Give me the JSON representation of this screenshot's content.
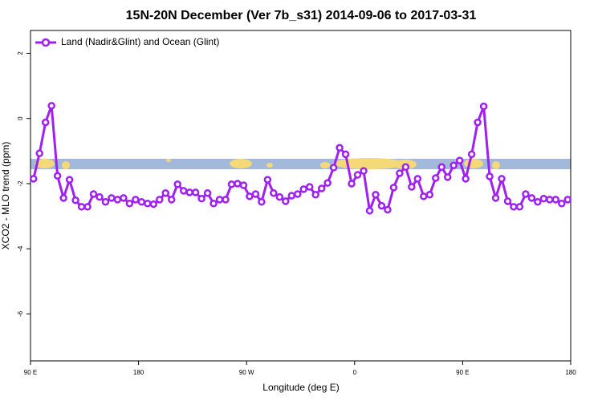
{
  "chart_data": {
    "type": "line",
    "title": "15N-20N December (Ver 7b_s31)   2014-09-06 to 2017-03-31",
    "x_label": "Longitude (deg E)",
    "y_label": "XCO2 - MLO trend (ppm)",
    "x": [
      92.5,
      97.5,
      102.5,
      107.5,
      112.5,
      117.5,
      122.5,
      127.5,
      132.5,
      137.5,
      142.5,
      147.5,
      152.5,
      157.5,
      162.5,
      167.5,
      172.5,
      177.5,
      182.5,
      187.5,
      192.5,
      197.5,
      202.5,
      207.5,
      212.5,
      217.5,
      222.5,
      227.5,
      232.5,
      237.5,
      242.5,
      247.5,
      252.5,
      257.5,
      262.5,
      267.5,
      272.5,
      277.5,
      282.5,
      287.5,
      292.5,
      297.5,
      302.5,
      307.5,
      312.5,
      317.5,
      322.5,
      327.5,
      332.5,
      337.5,
      342.5,
      347.5,
      352.5,
      357.5,
      362.5,
      367.5,
      372.5,
      377.5,
      382.5,
      387.5,
      392.5,
      397.5,
      402.5,
      407.5,
      412.5,
      417.5,
      422.5,
      427.5,
      432.5,
      437.5,
      442.5,
      447.5,
      452.5,
      457.5,
      462.5,
      467.5,
      472.5,
      477.5,
      482.5,
      487.5,
      492.5,
      497.5,
      502.5,
      507.5,
      512.5,
      517.5,
      522.5,
      527.5,
      532.5,
      537.5
    ],
    "series": [
      {
        "name": "Land (Nadir&Glint) and Ocean (Glint)",
        "color": "#a020f0",
        "values": [
          -1.85,
          -1.07,
          -0.12,
          0.39,
          -1.76,
          -2.44,
          -1.88,
          -2.51,
          -2.71,
          -2.71,
          -2.32,
          -2.41,
          -2.56,
          -2.44,
          -2.49,
          -2.44,
          -2.61,
          -2.49,
          -2.56,
          -2.61,
          -2.63,
          -2.49,
          -2.29,
          -2.49,
          -2.02,
          -2.22,
          -2.27,
          -2.27,
          -2.46,
          -2.29,
          -2.61,
          -2.49,
          -2.49,
          -2.02,
          -2.0,
          -2.05,
          -2.39,
          -2.32,
          -2.56,
          -1.88,
          -2.29,
          -2.41,
          -2.54,
          -2.37,
          -2.32,
          -2.17,
          -2.1,
          -2.34,
          -2.15,
          -1.98,
          -1.51,
          -0.9,
          -1.1,
          -2.0,
          -1.73,
          -1.61,
          -2.83,
          -2.34,
          -2.68,
          -2.8,
          -2.12,
          -1.68,
          -1.49,
          -2.1,
          -1.85,
          -2.39,
          -2.34,
          -1.83,
          -1.49,
          -1.8,
          -1.44,
          -1.29,
          -1.85,
          -1.1,
          -0.12,
          0.37,
          -1.78,
          -2.44,
          -1.85,
          -2.54,
          -2.71,
          -2.71,
          -2.32,
          -2.44,
          -2.56,
          -2.46,
          -2.49,
          -2.49,
          -2.61,
          -2.49
        ]
      }
    ],
    "xlim": [
      90,
      540
    ],
    "xticks": [
      {
        "value": 90,
        "label": "90 E"
      },
      180,
      {
        "value": 270,
        "label": "90 W"
      },
      {
        "value": 360,
        "label": "0"
      },
      {
        "value": 450,
        "label": "90 E"
      },
      {
        "value": 540,
        "label": "180"
      }
    ],
    "ylim": [
      -7.44,
      2.7
    ],
    "yticks": [
      2,
      0,
      -2,
      -4,
      -6
    ],
    "legend": "top-left"
  }
}
